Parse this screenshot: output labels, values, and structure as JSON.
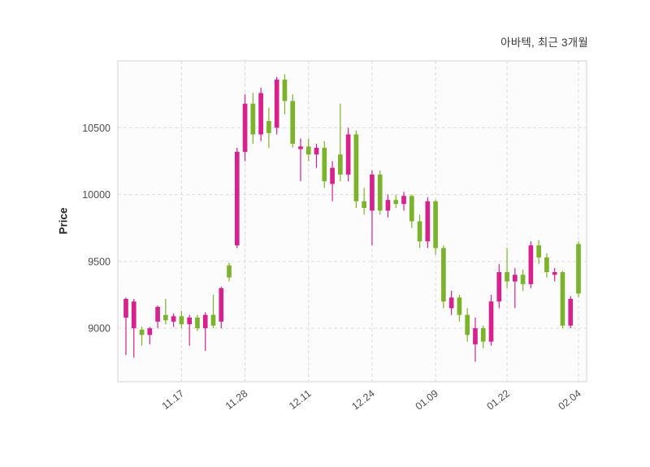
{
  "chart": {
    "title": "아바텍, 최근 3개월",
    "ylabel": "Price"
  },
  "chart_data": {
    "type": "candlestick",
    "title": "아바텍, 최근 3개월",
    "xlabel": "",
    "ylabel": "Price",
    "ylim": [
      8600,
      11000
    ],
    "y_ticks": [
      9000,
      9500,
      10000,
      10500
    ],
    "x_ticks": [
      {
        "index": 7,
        "label": "11.17"
      },
      {
        "index": 15,
        "label": "11.28"
      },
      {
        "index": 23,
        "label": "12.11"
      },
      {
        "index": 31,
        "label": "12.24"
      },
      {
        "index": 39,
        "label": "01.09"
      },
      {
        "index": 48,
        "label": "01.22"
      },
      {
        "index": 57,
        "label": "02.04"
      }
    ],
    "grid": "dashed",
    "legend": "none",
    "up_color": "#d6218e",
    "down_color": "#7cb32c",
    "columns": [
      "open",
      "high",
      "low",
      "close"
    ],
    "candles": [
      [
        9080,
        9230,
        8800,
        9220
      ],
      [
        9000,
        9220,
        8780,
        9200
      ],
      [
        8990,
        9010,
        8870,
        8950
      ],
      [
        8950,
        9010,
        8880,
        9000
      ],
      [
        9050,
        9170,
        9000,
        9160
      ],
      [
        9100,
        9220,
        9030,
        9060
      ],
      [
        9050,
        9110,
        9010,
        9090
      ],
      [
        9090,
        9130,
        9000,
        9030
      ],
      [
        9030,
        9100,
        8870,
        9080
      ],
      [
        9080,
        9100,
        8980,
        9000
      ],
      [
        9000,
        9120,
        8830,
        9100
      ],
      [
        9100,
        9250,
        9000,
        9020
      ],
      [
        9050,
        9310,
        9000,
        9300
      ],
      [
        9470,
        9490,
        9350,
        9380
      ],
      [
        9620,
        10350,
        9600,
        10320
      ],
      [
        10320,
        10750,
        10250,
        10680
      ],
      [
        10680,
        10760,
        10380,
        10450
      ],
      [
        10450,
        10800,
        10400,
        10760
      ],
      [
        10550,
        10650,
        10350,
        10460
      ],
      [
        10500,
        10880,
        10450,
        10860
      ],
      [
        10860,
        10900,
        10600,
        10700
      ],
      [
        10700,
        10750,
        10350,
        10380
      ],
      [
        10340,
        10420,
        10100,
        10360
      ],
      [
        10360,
        10420,
        10250,
        10300
      ],
      [
        10300,
        10380,
        10200,
        10350
      ],
      [
        10350,
        10400,
        10050,
        10100
      ],
      [
        10080,
        10250,
        9950,
        10200
      ],
      [
        10300,
        10680,
        10100,
        10150
      ],
      [
        10150,
        10500,
        10100,
        10450
      ],
      [
        10450,
        10480,
        9900,
        9950
      ],
      [
        9950,
        10050,
        9850,
        9900
      ],
      [
        9880,
        10180,
        9620,
        10150
      ],
      [
        10150,
        10180,
        9850,
        9880
      ],
      [
        9880,
        10000,
        9830,
        9960
      ],
      [
        9960,
        10000,
        9900,
        9930
      ],
      [
        9930,
        10020,
        9880,
        9990
      ],
      [
        9990,
        10000,
        9750,
        9800
      ],
      [
        9800,
        9850,
        9600,
        9650
      ],
      [
        9650,
        9980,
        9600,
        9950
      ],
      [
        9950,
        9960,
        9550,
        9600
      ],
      [
        9600,
        9620,
        9150,
        9200
      ],
      [
        9150,
        9280,
        9100,
        9230
      ],
      [
        9230,
        9250,
        9050,
        9100
      ],
      [
        9100,
        9150,
        8900,
        8950
      ],
      [
        8880,
        9080,
        8750,
        9000
      ],
      [
        9000,
        9020,
        8850,
        8900
      ],
      [
        8900,
        9250,
        8870,
        9200
      ],
      [
        9200,
        9480,
        9150,
        9420
      ],
      [
        9420,
        9600,
        9300,
        9350
      ],
      [
        9350,
        9450,
        9150,
        9400
      ],
      [
        9400,
        9440,
        9280,
        9330
      ],
      [
        9330,
        9650,
        9300,
        9620
      ],
      [
        9620,
        9660,
        9480,
        9530
      ],
      [
        9530,
        9560,
        9380,
        9420
      ],
      [
        9400,
        9450,
        9350,
        9420
      ],
      [
        9420,
        9430,
        9000,
        9020
      ],
      [
        9020,
        9240,
        9000,
        9220
      ],
      [
        9630,
        9650,
        9230,
        9260
      ]
    ]
  }
}
